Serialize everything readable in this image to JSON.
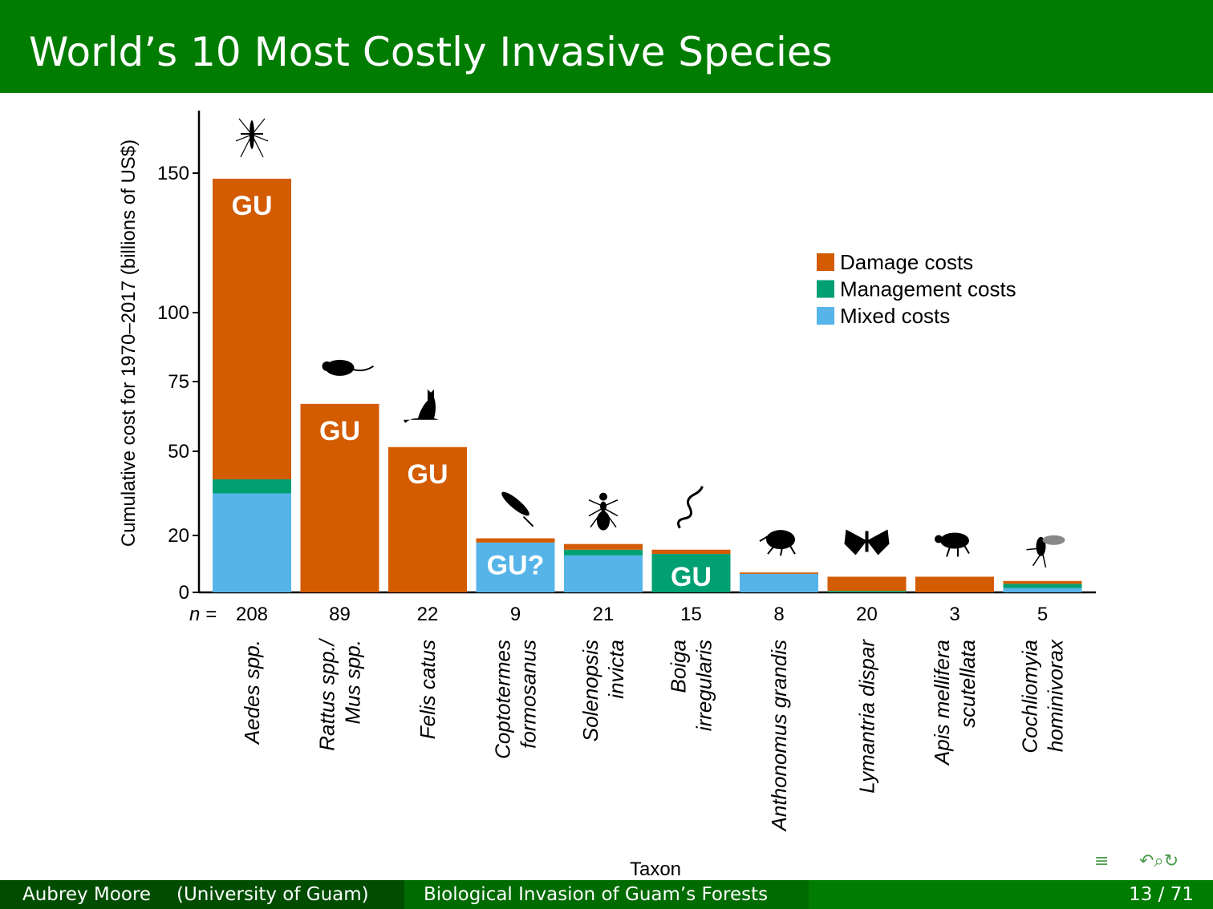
{
  "slide": {
    "title": "World’s 10 Most Costly Invasive Species"
  },
  "footer": {
    "author": "Aubrey Moore",
    "institution": "(University of Guam)",
    "talk_title": "Biological Invasion of Guam’s Forests",
    "page": "13 / 71"
  },
  "colors": {
    "header": "#007c00",
    "damage": "#d35b00",
    "management": "#00a073",
    "mixed": "#56b4e9"
  },
  "icons": [
    "mosquito-icon",
    "rat-icon",
    "cat-icon",
    "termite-icon",
    "ant-icon",
    "snake-icon",
    "weevil-icon",
    "moth-icon",
    "bee-icon",
    "fly-icon"
  ],
  "chart_data": {
    "type": "bar",
    "stacked": true,
    "ylabel": "Cumulative cost for 1970–2017 (billions of US$)",
    "xlabel": "Taxon",
    "yticks": [
      0,
      20,
      50,
      75,
      100,
      150
    ],
    "n_prefix": "n =",
    "taxa": [
      {
        "lines": [
          "Aedes spp."
        ],
        "n": "208",
        "mixed": 35,
        "management": 5,
        "damage": 108,
        "label": "GU"
      },
      {
        "lines": [
          "Rattus spp./",
          "Mus spp."
        ],
        "n": "89",
        "mixed": 0,
        "management": 0,
        "damage": 67,
        "label": "GU"
      },
      {
        "lines": [
          "Felis catus"
        ],
        "n": "22",
        "mixed": 0,
        "management": 0,
        "damage": 51.5,
        "label": "GU"
      },
      {
        "lines": [
          "Coptotermes",
          "formosanus"
        ],
        "n": "9",
        "mixed": 17.5,
        "management": 0,
        "damage": 1.5,
        "label": "GU?"
      },
      {
        "lines": [
          "Solenopsis",
          "invicta"
        ],
        "n": "21",
        "mixed": 13,
        "management": 2,
        "damage": 2,
        "label": ""
      },
      {
        "lines": [
          "Boiga",
          "irregularis"
        ],
        "n": "15",
        "mixed": 0,
        "management": 13.5,
        "damage": 1.5,
        "label": "GU"
      },
      {
        "lines": [
          "Anthonomus grandis"
        ],
        "n": "8",
        "mixed": 6.5,
        "management": 0,
        "damage": 0.5,
        "label": ""
      },
      {
        "lines": [
          "Lymantria dispar"
        ],
        "n": "20",
        "mixed": 0,
        "management": 0.5,
        "damage": 5,
        "label": ""
      },
      {
        "lines": [
          "Apis mellifera",
          "scutellata"
        ],
        "n": "3",
        "mixed": 0,
        "management": 0,
        "damage": 5.5,
        "label": ""
      },
      {
        "lines": [
          "Cochliomyia",
          "hominivorax"
        ],
        "n": "5",
        "mixed": 1.5,
        "management": 1.5,
        "damage": 1,
        "label": ""
      }
    ],
    "legend": [
      {
        "key": "damage",
        "label": "Damage costs"
      },
      {
        "key": "management",
        "label": "Management costs"
      },
      {
        "key": "mixed",
        "label": "Mixed costs"
      }
    ]
  }
}
